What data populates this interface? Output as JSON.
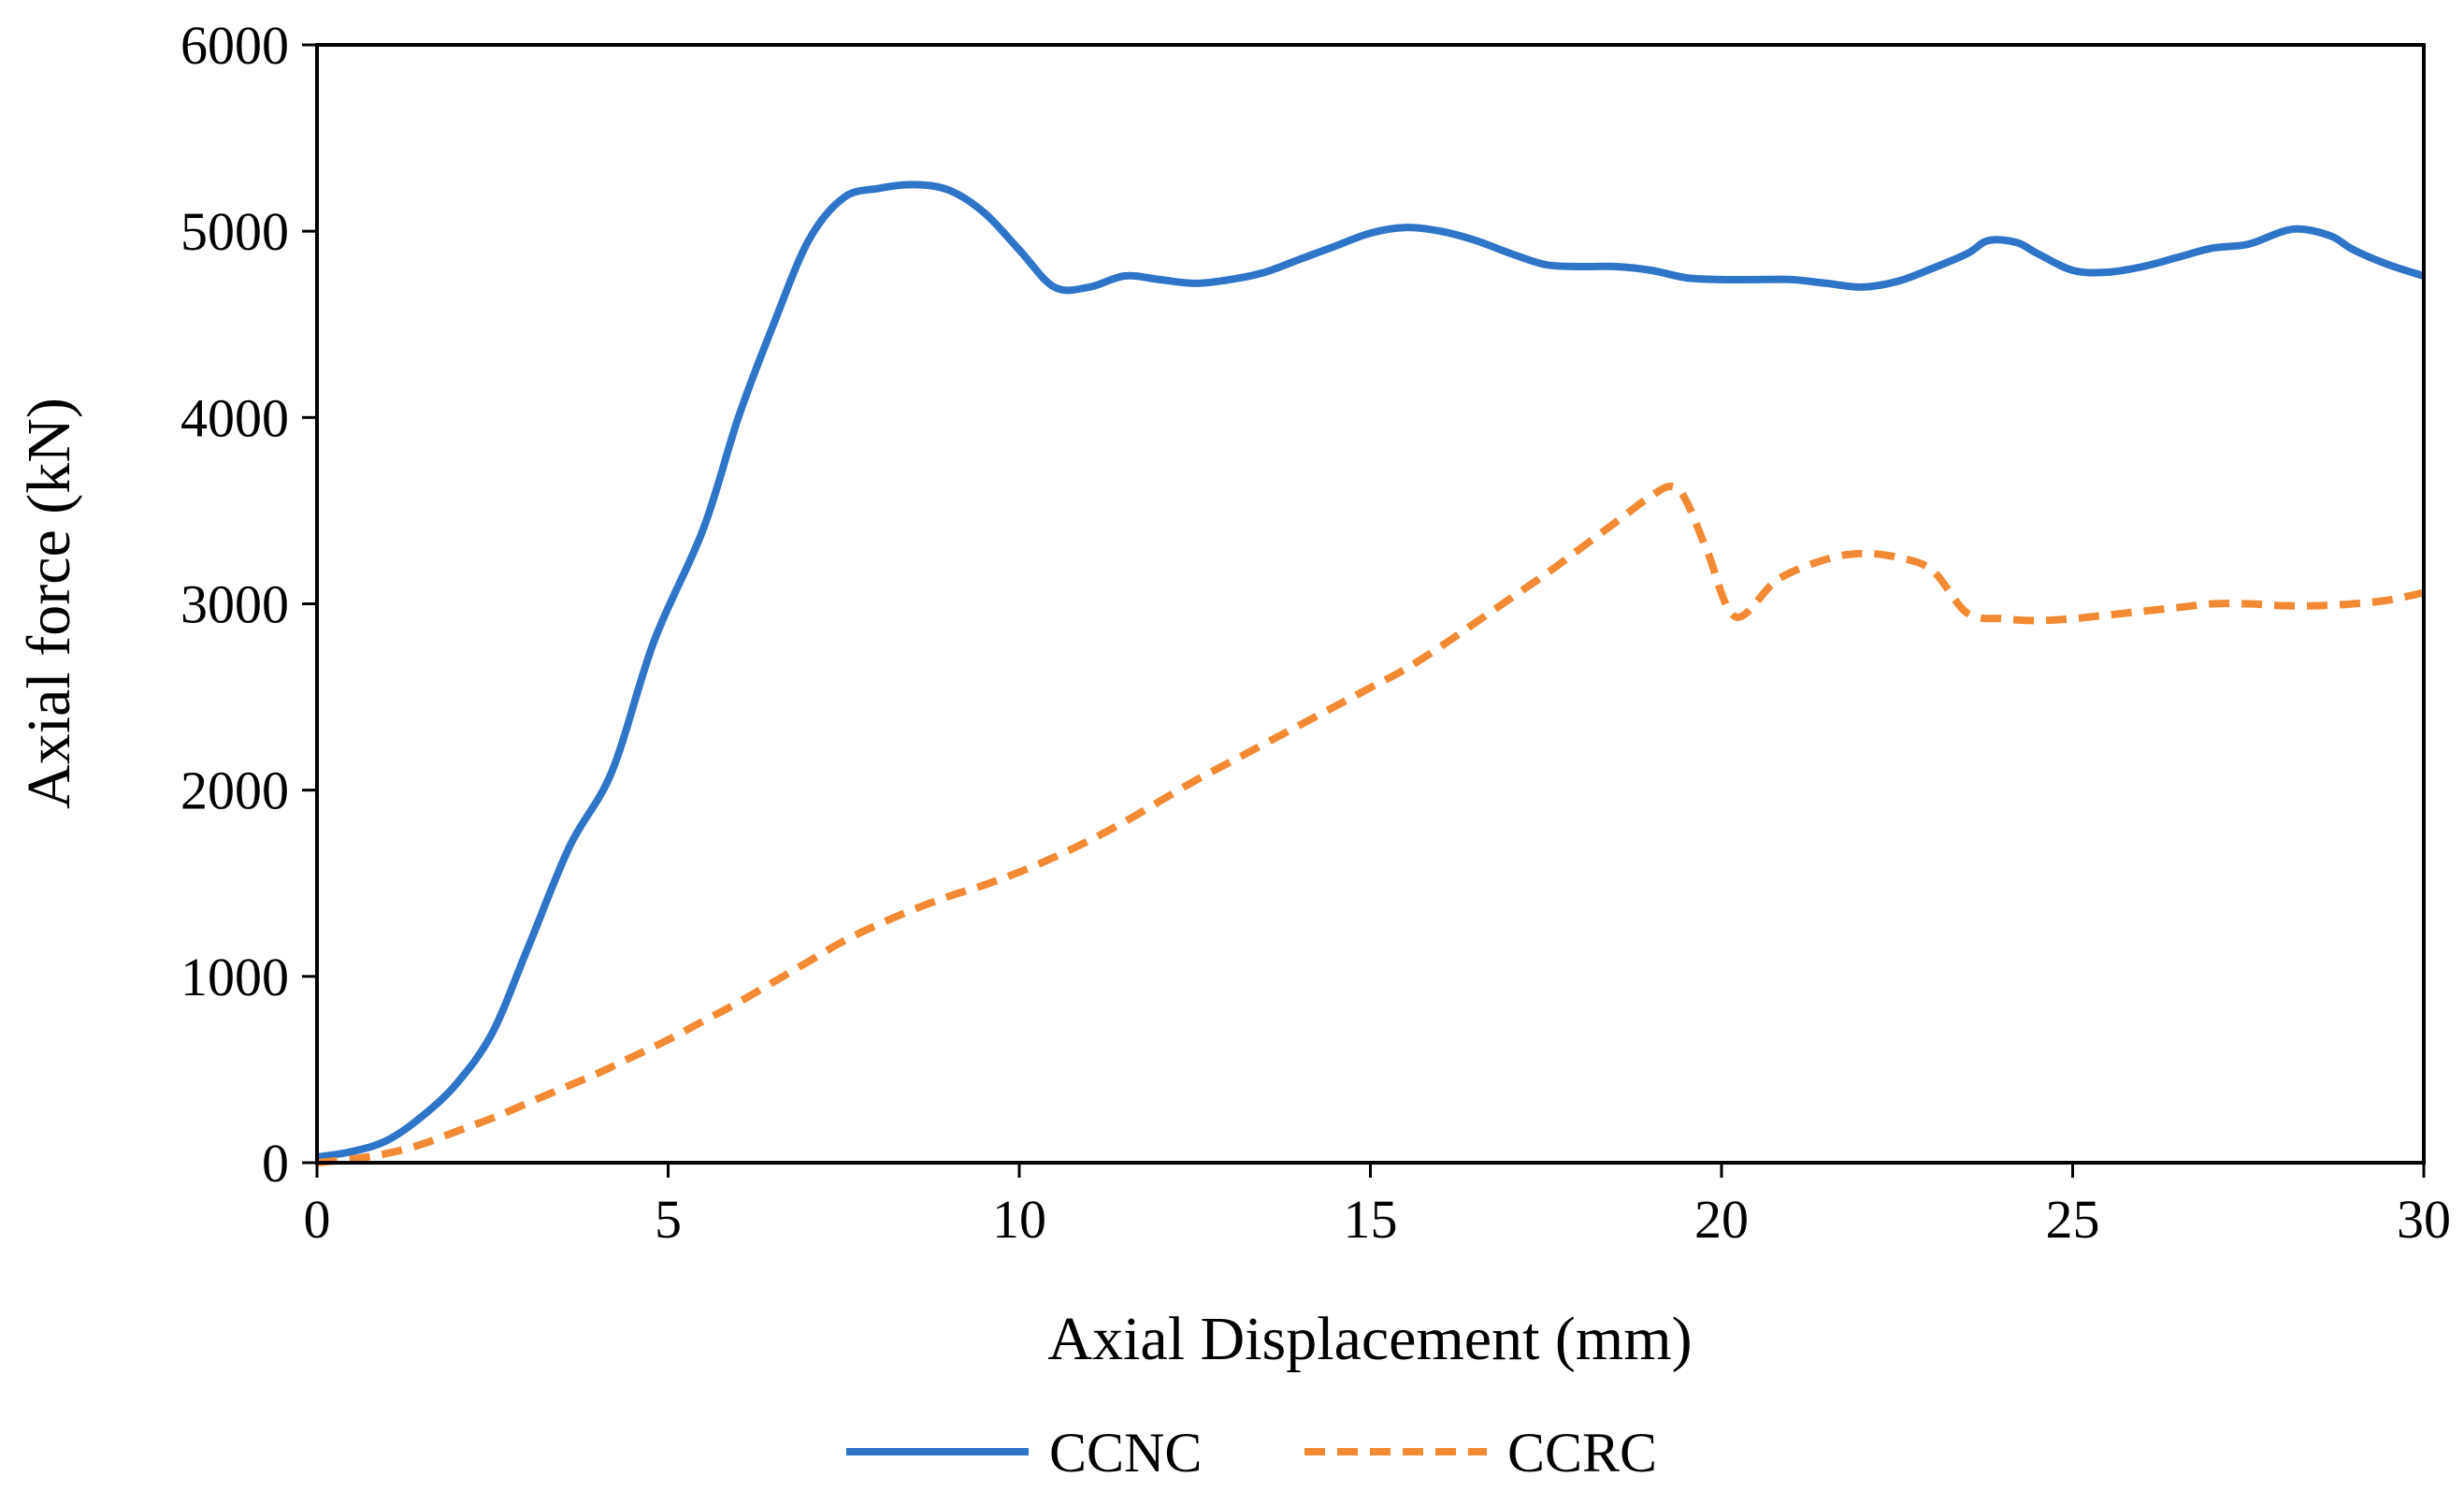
{
  "chart_data": {
    "type": "line",
    "title": "",
    "xlabel": "Axial Displacement (mm)",
    "ylabel": "Axial force (kN)",
    "xlim": [
      0,
      30
    ],
    "ylim": [
      0,
      6000
    ],
    "x_ticks": [
      "0",
      "5",
      "10",
      "15",
      "20",
      "25",
      "30"
    ],
    "y_ticks": [
      "0",
      "1000",
      "2000",
      "3000",
      "4000",
      "5000",
      "6000"
    ],
    "grid": false,
    "legend_position": "bottom-center",
    "series": [
      {
        "name": "CCNC",
        "color": "#2E75C8",
        "style": "solid",
        "x": [
          0,
          0.5,
          1,
          1.5,
          2,
          2.5,
          3,
          3.6,
          4.2,
          4.8,
          5.5,
          6,
          6.5,
          7,
          7.5,
          8,
          8.5,
          9,
          9.5,
          10,
          10.5,
          11,
          11.5,
          12,
          12.5,
          13,
          13.5,
          14,
          14.5,
          15,
          15.5,
          16,
          16.5,
          17,
          17.5,
          18,
          18.5,
          19,
          19.5,
          20,
          20.5,
          21,
          21.5,
          22,
          22.5,
          23,
          23.5,
          23.8,
          24.2,
          24.5,
          25,
          25.5,
          26,
          26.5,
          27,
          27.5,
          28,
          28.3,
          28.7,
          29,
          29.5,
          30
        ],
        "y": [
          30,
          60,
          120,
          250,
          430,
          700,
          1150,
          1700,
          2100,
          2800,
          3400,
          4000,
          4500,
          4950,
          5180,
          5230,
          5250,
          5220,
          5100,
          4900,
          4700,
          4700,
          4760,
          4740,
          4720,
          4740,
          4780,
          4850,
          4920,
          4990,
          5020,
          5000,
          4950,
          4880,
          4820,
          4810,
          4810,
          4790,
          4750,
          4740,
          4740,
          4740,
          4720,
          4700,
          4730,
          4800,
          4880,
          4950,
          4940,
          4880,
          4790,
          4780,
          4810,
          4860,
          4910,
          4930,
          5000,
          5010,
          4970,
          4900,
          4820,
          4760
        ]
      },
      {
        "name": "CCRC",
        "color": "#F28A34",
        "style": "dashed",
        "x": [
          0,
          0.5,
          1,
          1.5,
          2,
          2.5,
          3,
          3.5,
          4,
          4.5,
          5,
          5.5,
          6,
          6.5,
          7,
          7.5,
          8,
          8.5,
          9,
          9.5,
          10,
          10.5,
          11,
          11.5,
          12,
          12.5,
          13,
          13.5,
          14,
          14.5,
          15,
          15.5,
          16,
          16.5,
          17,
          17.5,
          18,
          18.5,
          19,
          19.3,
          19.5,
          19.8,
          20.2,
          20.8,
          21.5,
          22,
          22.5,
          23,
          23.5,
          24,
          24.5,
          25,
          25.5,
          26,
          26.5,
          27,
          27.5,
          28,
          28.5,
          29,
          29.5,
          30
        ],
        "y": [
          0,
          20,
          50,
          100,
          170,
          240,
          320,
          400,
          480,
          570,
          660,
          760,
          860,
          970,
          1080,
          1190,
          1280,
          1360,
          1430,
          1490,
          1560,
          1640,
          1730,
          1830,
          1940,
          2050,
          2150,
          2250,
          2350,
          2450,
          2550,
          2650,
          2770,
          2900,
          3030,
          3160,
          3300,
          3440,
          3580,
          3630,
          3550,
          3280,
          2930,
          3130,
          3240,
          3270,
          3250,
          3180,
          2950,
          2920,
          2910,
          2920,
          2940,
          2960,
          2980,
          3000,
          3000,
          2990,
          2990,
          3000,
          3020,
          3060
        ]
      }
    ]
  }
}
